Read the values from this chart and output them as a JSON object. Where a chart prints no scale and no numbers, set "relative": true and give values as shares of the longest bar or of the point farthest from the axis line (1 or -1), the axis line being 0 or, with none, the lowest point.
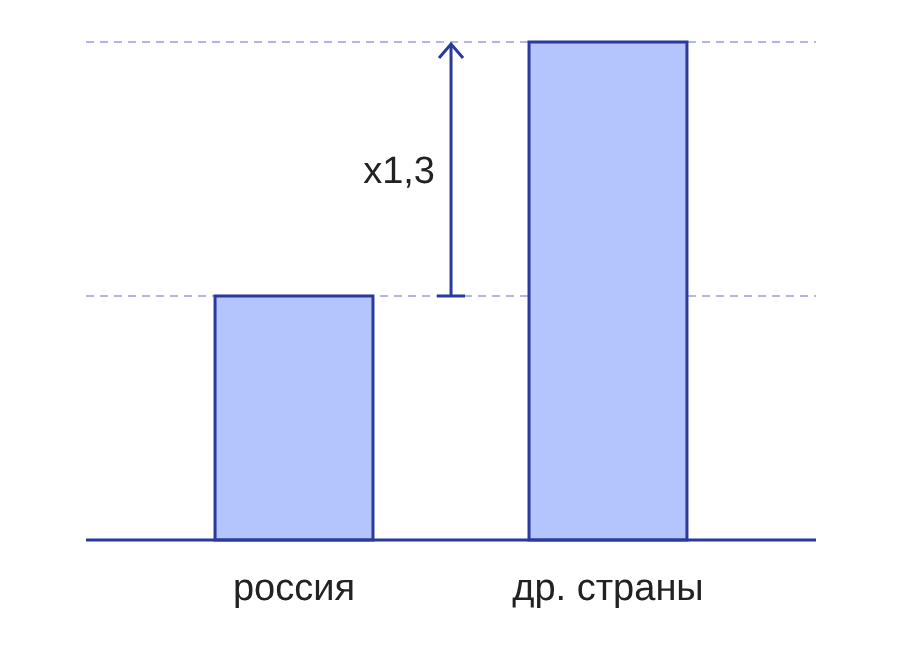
{
  "chart_data": {
    "type": "bar",
    "relative": true,
    "categories": [
      "россия",
      "др. страны"
    ],
    "values": [
      0.49,
      1
    ],
    "color": "#b3c5fc",
    "ref_lines": [
      {
        "axis": "y",
        "value": 0.49,
        "color": "#b4b4e6",
        "line_style": "dashed"
      },
      {
        "axis": "y",
        "value": 1,
        "color": "#b4b4e6",
        "line_style": "dashed"
      }
    ],
    "annotations": [
      "x1,3"
    ]
  }
}
